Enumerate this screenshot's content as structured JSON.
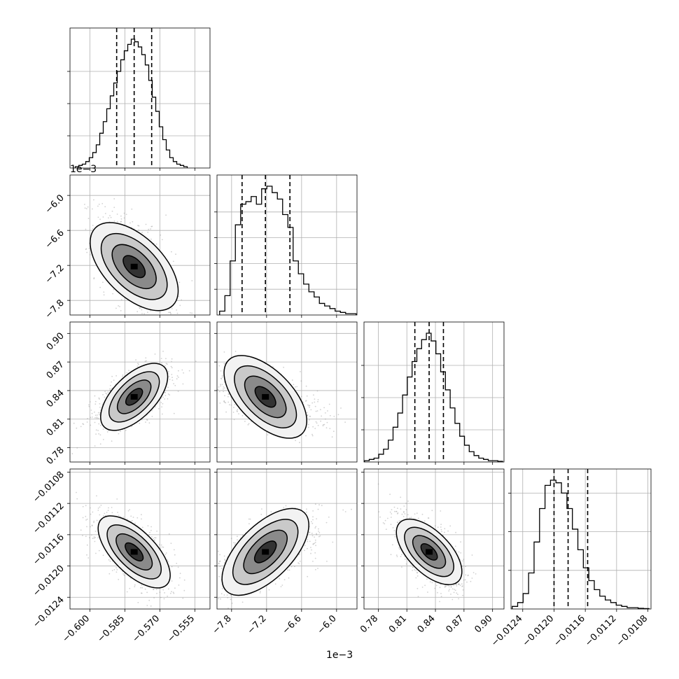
{
  "chart_data": {
    "type": "corner",
    "n_params": 4,
    "params": [
      {
        "range": [
          -0.6085,
          -0.5485
        ],
        "ticks": [
          -0.6,
          -0.585,
          -0.57,
          -0.555
        ],
        "tick_labels": [
          "−0.600",
          "−0.585",
          "−0.570",
          "−0.555"
        ],
        "quantiles": [
          -0.5885,
          -0.581,
          -0.5735
        ],
        "offset_label": "",
        "hist": {
          "bins": [
            -0.6055,
            -0.604,
            -0.6025,
            -0.601,
            -0.5995,
            -0.598,
            -0.5965,
            -0.595,
            -0.5935,
            -0.592,
            -0.5905,
            -0.589,
            -0.5875,
            -0.586,
            -0.5845,
            -0.583,
            -0.5815,
            -0.58,
            -0.5785,
            -0.577,
            -0.5755,
            -0.574,
            -0.5725,
            -0.571,
            -0.5695,
            -0.568,
            -0.5665,
            -0.565,
            -0.5635,
            -0.562,
            -0.5605,
            -0.559
          ],
          "counts": [
            0.01,
            0.02,
            0.03,
            0.05,
            0.08,
            0.12,
            0.18,
            0.27,
            0.36,
            0.46,
            0.56,
            0.66,
            0.75,
            0.84,
            0.91,
            0.96,
            1.0,
            0.98,
            0.94,
            0.88,
            0.8,
            0.68,
            0.55,
            0.44,
            0.32,
            0.22,
            0.14,
            0.08,
            0.05,
            0.03,
            0.02,
            0.01
          ]
        },
        "hist_yticks": [
          0.25,
          0.5,
          0.75
        ]
      },
      {
        "range": [
          -0.00805,
          -0.00565
        ],
        "ticks": [
          -0.0078,
          -0.0072,
          -0.0066,
          -0.006
        ],
        "tick_labels": [
          "−7.8",
          "−7.2",
          "−6.6",
          "−6.0"
        ],
        "quantiles": [
          -0.00762,
          -0.00722,
          -0.0068
        ],
        "offset_label": "1e−3",
        "hist": {
          "bins": [
            -0.00796,
            -0.00787,
            -0.00778,
            -0.00769,
            -0.0076,
            -0.00751,
            -0.00742,
            -0.00733,
            -0.00724,
            -0.00715,
            -0.00706,
            -0.00697,
            -0.00688,
            -0.00679,
            -0.0067,
            -0.00661,
            -0.00652,
            -0.00643,
            -0.00634,
            -0.00625,
            -0.00616,
            -0.00607,
            -0.00598,
            -0.00589,
            -0.0058,
            -0.00571
          ],
          "counts": [
            0.03,
            0.15,
            0.42,
            0.7,
            0.86,
            0.88,
            0.92,
            0.86,
            0.98,
            1.0,
            0.95,
            0.9,
            0.78,
            0.68,
            0.42,
            0.32,
            0.24,
            0.18,
            0.14,
            0.09,
            0.07,
            0.05,
            0.03,
            0.02,
            0.01,
            0.01
          ]
        },
        "hist_yticks": [
          0.2,
          0.4,
          0.6,
          0.8
        ]
      },
      {
        "range": [
          0.765,
          0.912
        ],
        "ticks": [
          0.78,
          0.81,
          0.84,
          0.87,
          0.9
        ],
        "tick_labels": [
          "0.78",
          "0.81",
          "0.84",
          "0.87",
          "0.90"
        ],
        "quantiles": [
          0.8184,
          0.8334,
          0.8484
        ],
        "offset_label": "",
        "hist": {
          "bins": [
            0.768,
            0.773,
            0.778,
            0.783,
            0.788,
            0.793,
            0.798,
            0.803,
            0.808,
            0.813,
            0.818,
            0.823,
            0.828,
            0.833,
            0.838,
            0.843,
            0.848,
            0.853,
            0.858,
            0.863,
            0.868,
            0.873,
            0.878,
            0.883,
            0.888,
            0.893,
            0.898,
            0.903,
            0.908
          ],
          "counts": [
            0.01,
            0.02,
            0.03,
            0.06,
            0.1,
            0.17,
            0.27,
            0.38,
            0.52,
            0.66,
            0.78,
            0.88,
            0.95,
            1.0,
            0.94,
            0.84,
            0.7,
            0.56,
            0.42,
            0.3,
            0.2,
            0.13,
            0.08,
            0.05,
            0.03,
            0.02,
            0.01,
            0.01,
            0.005
          ]
        },
        "hist_yticks": [
          0.25,
          0.5,
          0.75
        ]
      },
      {
        "range": [
          -0.01255,
          -0.01076
        ],
        "ticks": [
          -0.0124,
          -0.012,
          -0.0116,
          -0.0112,
          -0.0108
        ],
        "tick_labels": [
          "−0.0124",
          "−0.0120",
          "−0.0116",
          "−0.0112",
          "−0.0108"
        ],
        "quantiles": [
          -0.012,
          -0.01182,
          -0.01157
        ],
        "offset_label": "",
        "hist": {
          "bins": [
            -0.0125,
            -0.01243,
            -0.01236,
            -0.01229,
            -0.01222,
            -0.01215,
            -0.01208,
            -0.01201,
            -0.01194,
            -0.01187,
            -0.0118,
            -0.01173,
            -0.01166,
            -0.01159,
            -0.01152,
            -0.01145,
            -0.01138,
            -0.01131,
            -0.01124,
            -0.01117,
            -0.0111,
            -0.01103,
            -0.01096,
            -0.01089,
            -0.01082
          ],
          "counts": [
            0.02,
            0.05,
            0.12,
            0.28,
            0.52,
            0.78,
            0.96,
            1.0,
            0.98,
            0.9,
            0.78,
            0.62,
            0.46,
            0.32,
            0.22,
            0.15,
            0.1,
            0.07,
            0.05,
            0.03,
            0.02,
            0.01,
            0.01,
            0.005,
            0.003
          ]
        },
        "hist_yticks": [
          0.3,
          0.6,
          0.9
        ]
      }
    ],
    "covariance_corr": {
      "1_0": -0.55,
      "2_0": 0.6,
      "2_1": -0.58,
      "3_0": -0.65,
      "3_1": 0.62,
      "3_2": -0.6
    },
    "grid": true,
    "hist_style": "step",
    "quantile_style": "dashed",
    "density_levels": [
      0.5,
      1.0,
      1.5,
      2.0
    ]
  }
}
